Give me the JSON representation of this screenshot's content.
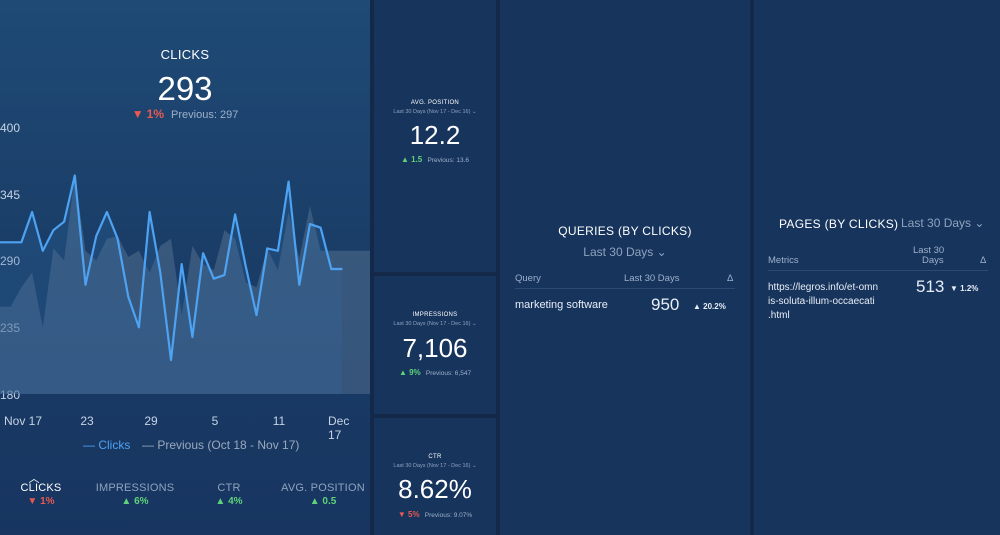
{
  "clicks": {
    "title": "CLICKS",
    "value": "293",
    "delta": "1%",
    "previous": "Previous: 297",
    "y_ticks": [
      "400",
      "345",
      "290",
      "235",
      "180"
    ],
    "x_ticks": [
      "Nov 17",
      "23",
      "29",
      "5",
      "11",
      "Dec 17"
    ],
    "legend_current": "Clicks",
    "legend_previous": "Previous (Oct 18 - Nov 17)",
    "colors": {
      "current": "#4ea2f2",
      "previous": "#5d7797"
    }
  },
  "tabs": [
    {
      "label": "CLICKS",
      "delta": "1%",
      "dir": "down"
    },
    {
      "label": "IMPRESSIONS",
      "delta": "6%",
      "dir": "up"
    },
    {
      "label": "CTR",
      "delta": "4%",
      "dir": "up"
    },
    {
      "label": "AVG. POSITION",
      "delta": "0.5",
      "dir": "up"
    }
  ],
  "avg_position": {
    "title": "AVG. POSITION",
    "range": "Last 30 Days (Nov 17 - Dec 16)",
    "value": "12.2",
    "delta": "1.5",
    "previous": "Previous: 13.6"
  },
  "impressions": {
    "title": "IMPRESSIONS",
    "range": "Last 30 Days (Nov 17 - Dec 16)",
    "value": "7,106",
    "delta": "9%",
    "previous": "Previous: 6,547"
  },
  "ctr": {
    "title": "CTR",
    "range": "Last 30 Days (Nov 17 - Dec 16)",
    "value": "8.62%",
    "delta": "5%",
    "previous": "Previous: 9.07%"
  },
  "queries": {
    "title": "QUERIES (BY CLICKS)",
    "range": "Last 30 Days",
    "headers": [
      "Query",
      "Last 30 Days",
      "Δ"
    ],
    "rows": [
      {
        "query": "marketing software",
        "value": "950",
        "delta": "20.2%"
      }
    ]
  },
  "pages": {
    "title": "PAGES (BY CLICKS)",
    "range": "Last 30 Days",
    "headers": [
      "Metrics",
      "Last 30",
      "Days",
      "Δ"
    ],
    "rows": [
      {
        "url_1": "https://legros.info/et-omn",
        "url_2": "is-soluta-illum-occaecati",
        "url_3": ".html",
        "value": "513",
        "delta": "1.2%"
      }
    ]
  },
  "chart_data": {
    "type": "line",
    "title": "CLICKS",
    "xlabel": "",
    "ylabel": "",
    "x_tick_labels": [
      "Nov 17",
      "23",
      "29",
      "5",
      "11",
      "Dec 17"
    ],
    "ylim": [
      180,
      400
    ],
    "series": [
      {
        "name": "Clicks",
        "values": [
          305,
          305,
          305,
          330,
          298,
          315,
          322,
          360,
          270,
          310,
          330,
          308,
          260,
          235,
          330,
          280,
          208,
          287,
          227,
          296,
          275,
          278,
          328,
          285,
          245,
          300,
          298,
          355,
          270,
          320,
          317,
          283,
          283
        ]
      },
      {
        "name": "Previous (Oct 18 - Nov 17)",
        "values": [
          252,
          252,
          268,
          280,
          235,
          300,
          290,
          360,
          298,
          290,
          308,
          310,
          293,
          298,
          280,
          302,
          308,
          245,
          302,
          287,
          282,
          315,
          308,
          272,
          268,
          300,
          282,
          330,
          292,
          335,
          298,
          298,
          298
        ]
      }
    ]
  }
}
